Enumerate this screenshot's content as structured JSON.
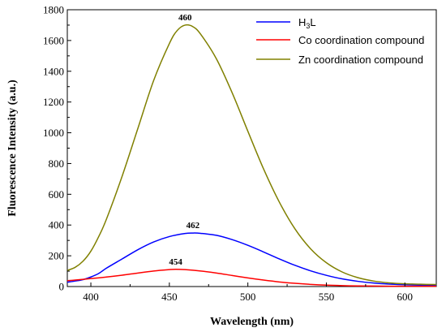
{
  "chart_data": {
    "type": "line",
    "title": "",
    "xlabel": "Wavelength (nm)",
    "ylabel": "Fluorescence Intensity (a.u.)",
    "xlim": [
      385,
      620
    ],
    "ylim": [
      0,
      1800
    ],
    "xticks": [
      400,
      450,
      500,
      550,
      600
    ],
    "yticks": [
      0,
      200,
      400,
      600,
      800,
      1000,
      1200,
      1400,
      1600,
      1800
    ],
    "grid": false,
    "legend_position": "top-right",
    "series": [
      {
        "name": "H3L",
        "name_main": "H",
        "name_sub": "3",
        "name_tail": "L",
        "color": "#0000ff",
        "x": [
          385,
          390,
          395,
          400,
          405,
          410,
          420,
          430,
          440,
          450,
          460,
          465,
          470,
          480,
          490,
          500,
          510,
          520,
          530,
          540,
          550,
          560,
          570,
          580,
          590,
          600,
          610,
          620
        ],
        "y": [
          28,
          36,
          45,
          62,
          85,
          120,
          180,
          240,
          290,
          325,
          345,
          348,
          346,
          333,
          305,
          268,
          225,
          180,
          138,
          102,
          73,
          50,
          34,
          23,
          16,
          12,
          9,
          8
        ]
      },
      {
        "name": "Co coordination compound",
        "color": "#ff0000",
        "x": [
          385,
          390,
          400,
          410,
          420,
          430,
          440,
          450,
          454,
          460,
          470,
          480,
          490,
          500,
          510,
          520,
          530,
          540,
          550,
          560,
          570,
          580,
          590,
          600,
          610,
          620
        ],
        "y": [
          38,
          42,
          52,
          62,
          74,
          88,
          101,
          110,
          112,
          110,
          101,
          88,
          72,
          56,
          42,
          30,
          21,
          14,
          9,
          6,
          4,
          3,
          2,
          2,
          2,
          2
        ]
      },
      {
        "name": "Zn coordination compound",
        "color": "#808000",
        "x": [
          385,
          390,
          395,
          400,
          405,
          410,
          420,
          430,
          440,
          450,
          455,
          460,
          465,
          470,
          480,
          490,
          500,
          510,
          520,
          530,
          540,
          550,
          560,
          570,
          580,
          590,
          600,
          610,
          620
        ],
        "y": [
          105,
          125,
          165,
          230,
          325,
          440,
          720,
          1030,
          1340,
          1580,
          1665,
          1700,
          1690,
          1640,
          1480,
          1260,
          1010,
          765,
          550,
          375,
          245,
          155,
          95,
          58,
          36,
          24,
          18,
          15,
          13
        ]
      }
    ],
    "annotations": [
      {
        "text": "460",
        "x": 460,
        "y": 1700,
        "series": 2
      },
      {
        "text": "462",
        "x": 465,
        "y": 348,
        "series": 0
      },
      {
        "text": "454",
        "x": 454,
        "y": 112,
        "series": 1
      }
    ]
  }
}
